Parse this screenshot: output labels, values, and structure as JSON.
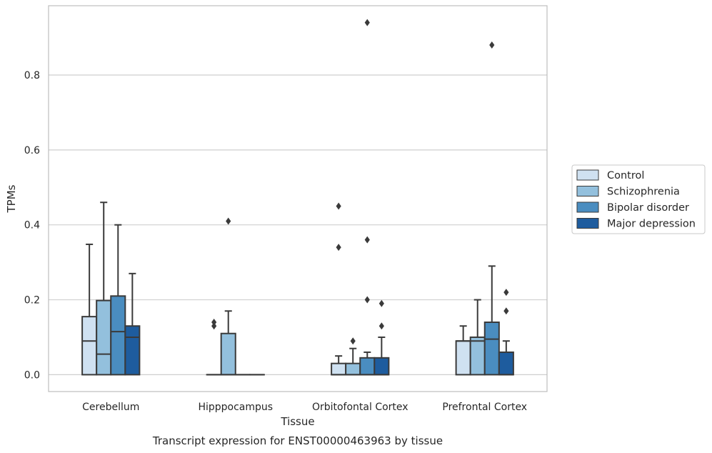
{
  "caption": "Transcript expression for ENST00000463963 by tissue",
  "colors": {
    "Control": "#cfe1f1",
    "Schizophrenia": "#93c0dd",
    "Bipolar disorder": "#4a8dc0",
    "Major depression": "#1e5c9e",
    "line": "#3a3a3a",
    "grid": "#cfcfcf",
    "frame": "#bdbdbd"
  },
  "chart_data": {
    "type": "box",
    "xlabel": "Tissue",
    "ylabel": "TPMs",
    "ylim": [
      -0.045,
      0.985
    ],
    "yticks": [
      0.0,
      0.2,
      0.4,
      0.6,
      0.8
    ],
    "ytick_labels": [
      "0.0",
      "0.2",
      "0.4",
      "0.6",
      "0.8"
    ],
    "grid": "horizontal",
    "legend_position": "right",
    "categories": [
      "Cerebellum",
      "Hipppocampus",
      "Orbitofontal Cortex",
      "Prefrontal Cortex"
    ],
    "series": [
      {
        "name": "Control",
        "boxes": [
          {
            "q1": 0.0,
            "median": 0.09,
            "q3": 0.155,
            "whisker_low": 0.0,
            "whisker_high": 0.348,
            "outliers": []
          },
          {
            "q1": 0.0,
            "median": 0.0,
            "q3": 0.0,
            "whisker_low": 0.0,
            "whisker_high": 0.0,
            "outliers": [
              0.13,
              0.14
            ]
          },
          {
            "q1": 0.0,
            "median": 0.0,
            "q3": 0.03,
            "whisker_low": 0.0,
            "whisker_high": 0.05,
            "outliers": [
              0.34,
              0.45
            ]
          },
          {
            "q1": 0.0,
            "median": 0.09,
            "q3": 0.09,
            "whisker_low": 0.0,
            "whisker_high": 0.13,
            "outliers": []
          }
        ]
      },
      {
        "name": "Schizophrenia",
        "boxes": [
          {
            "q1": 0.0,
            "median": 0.055,
            "q3": 0.198,
            "whisker_low": 0.0,
            "whisker_high": 0.46,
            "outliers": []
          },
          {
            "q1": 0.0,
            "median": 0.0,
            "q3": 0.11,
            "whisker_low": 0.0,
            "whisker_high": 0.17,
            "outliers": [
              0.41
            ]
          },
          {
            "q1": 0.0,
            "median": 0.0,
            "q3": 0.03,
            "whisker_low": 0.0,
            "whisker_high": 0.07,
            "outliers": [
              0.09
            ]
          },
          {
            "q1": 0.0,
            "median": 0.09,
            "q3": 0.1,
            "whisker_low": 0.0,
            "whisker_high": 0.2,
            "outliers": []
          }
        ]
      },
      {
        "name": "Bipolar disorder",
        "boxes": [
          {
            "q1": 0.0,
            "median": 0.115,
            "q3": 0.21,
            "whisker_low": 0.0,
            "whisker_high": 0.4,
            "outliers": []
          },
          {
            "q1": 0.0,
            "median": 0.0,
            "q3": 0.0,
            "whisker_low": 0.0,
            "whisker_high": 0.0,
            "outliers": []
          },
          {
            "q1": 0.0,
            "median": 0.0,
            "q3": 0.045,
            "whisker_low": 0.0,
            "whisker_high": 0.06,
            "outliers": [
              0.2,
              0.36,
              0.94
            ]
          },
          {
            "q1": 0.0,
            "median": 0.095,
            "q3": 0.14,
            "whisker_low": 0.0,
            "whisker_high": 0.29,
            "outliers": [
              0.88
            ]
          }
        ]
      },
      {
        "name": "Major depression",
        "boxes": [
          {
            "q1": 0.0,
            "median": 0.1,
            "q3": 0.13,
            "whisker_low": 0.0,
            "whisker_high": 0.27,
            "outliers": []
          },
          {
            "q1": 0.0,
            "median": 0.0,
            "q3": 0.0,
            "whisker_low": 0.0,
            "whisker_high": 0.0,
            "outliers": []
          },
          {
            "q1": 0.0,
            "median": 0.0,
            "q3": 0.045,
            "whisker_low": 0.0,
            "whisker_high": 0.1,
            "outliers": [
              0.13,
              0.19
            ]
          },
          {
            "q1": 0.0,
            "median": 0.0,
            "q3": 0.06,
            "whisker_low": 0.0,
            "whisker_high": 0.09,
            "outliers": [
              0.17,
              0.22
            ]
          }
        ]
      }
    ]
  }
}
